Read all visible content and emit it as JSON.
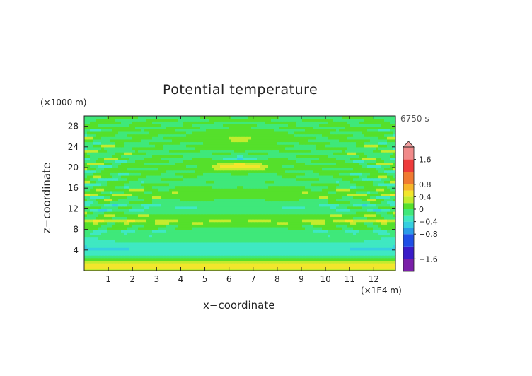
{
  "chart_data": {
    "type": "heatmap",
    "title": "Potential temperature",
    "xlabel": "x−coordinate",
    "ylabel": "z−coordinate",
    "x_unit": "(×1E4 m)",
    "z_unit": "(×1000 m)",
    "time_label": "6750 s",
    "xlim": [
      0,
      12.9
    ],
    "ylim": [
      0,
      30
    ],
    "x_ticks": [
      "1",
      "2",
      "3",
      "4",
      "5",
      "6",
      "7",
      "8",
      "9",
      "10",
      "11",
      "12"
    ],
    "y_ticks": [
      "4",
      "8",
      "12",
      "16",
      "20",
      "24",
      "28"
    ],
    "colorbar": {
      "labels": [
        "1.6",
        "0.8",
        "0.4",
        "0",
        "−0.4",
        "−0.8",
        "−1.6"
      ],
      "levels": [
        -2.0,
        -1.6,
        -1.2,
        -0.8,
        -0.6,
        -0.4,
        -0.2,
        0,
        0.2,
        0.4,
        0.6,
        0.8,
        1.2,
        1.6,
        2.0
      ],
      "colors": [
        "#7a1fa8",
        "#3a1cc8",
        "#1f4fe6",
        "#2a9be8",
        "#35cfe0",
        "#3fe8c2",
        "#3fe87a",
        "#55e02b",
        "#c3ec2e",
        "#f2e62c",
        "#f7b52a",
        "#f07a32",
        "#ee3b3b",
        "#f18a8a"
      ]
    }
  }
}
